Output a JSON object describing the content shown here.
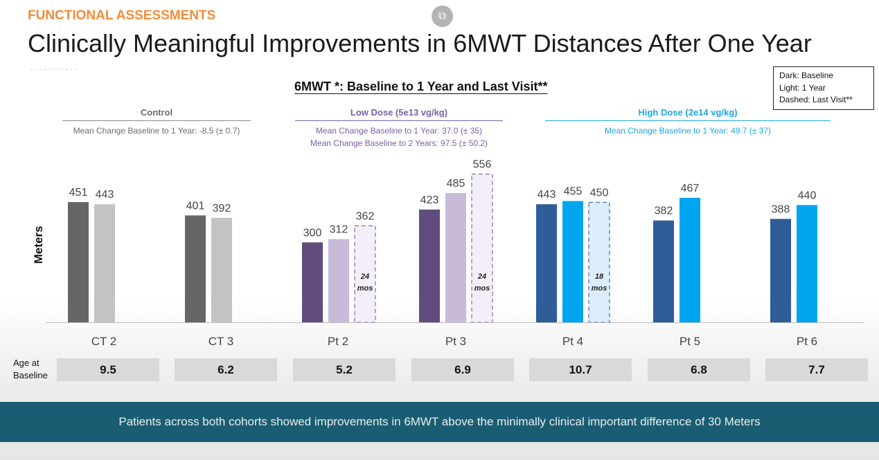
{
  "header": {
    "section": "FUNCTIONAL ASSESSMENTS",
    "title": "Clinically Meaningful Improvements in 6MWT Distances After One Year",
    "dots": "...........",
    "popout_icon": "open-in-new-icon"
  },
  "legend": {
    "line1": "Dark: Baseline",
    "line2": "Light: 1 Year",
    "line3": "Dashed: Last Visit**"
  },
  "groups": {
    "control": {
      "name": "Control",
      "stat1": "Mean Change Baseline to 1 Year: -8.5 (± 0.7)",
      "color": "#7a7a7a"
    },
    "low": {
      "name": "Low Dose (5e13 vg/kg)",
      "stat1": "Mean Change Baseline to 1 Year: 37.0 (± 35)",
      "stat2": "Mean Change Baseline to 2 Years: 97.5 (± 50.2)",
      "color": "#7b5ea7"
    },
    "high": {
      "name": "High Dose (2e14 vg/kg)",
      "stat1": "Mean Change Baseline to 1 Year: 49.7 (± 37)",
      "color": "#1ea6e3"
    }
  },
  "age": {
    "label_line1": "Age at",
    "label_line2": "Baseline",
    "values": [
      "9.5",
      "6.2",
      "5.2",
      "6.9",
      "10.7",
      "6.8",
      "7.7"
    ]
  },
  "banner": "Patients across both cohorts showed improvements in 6MWT above the minimally clinical important difference of 30 Meters",
  "chart_data": {
    "type": "bar",
    "title": "6MWT *: Baseline to 1 Year and Last Visit**",
    "ylabel": "Meters",
    "ylim": [
      0,
      560
    ],
    "categories": [
      "CT 2",
      "CT 3",
      "Pt 2",
      "Pt 3",
      "Pt 4",
      "Pt 5",
      "Pt 6"
    ],
    "series": [
      {
        "name": "Baseline",
        "values": [
          451,
          401,
          300,
          423,
          443,
          382,
          388
        ]
      },
      {
        "name": "1 Year",
        "values": [
          443,
          392,
          312,
          485,
          455,
          467,
          440
        ]
      },
      {
        "name": "Last Visit",
        "values": [
          null,
          null,
          362,
          556,
          450,
          null,
          null
        ],
        "annotations": [
          null,
          null,
          "24 mos",
          "24 mos",
          "18 mos",
          null,
          null
        ]
      }
    ],
    "colors": {
      "baseline": [
        "#666666",
        "#666666",
        "#604c7d",
        "#604c7d",
        "#2f5d97",
        "#2f5d97",
        "#2f5d97"
      ],
      "year1": [
        "#c3c3c3",
        "#c3c3c3",
        "#c7bbd9",
        "#c7bbd9",
        "#00a5ef",
        "#00a5ef",
        "#00a5ef"
      ],
      "last_fill": [
        "",
        "",
        "#f3eef7",
        "#f3eef7",
        "#dceefb",
        "",
        ""
      ],
      "last_stroke": [
        "",
        "",
        "#8d72ad",
        "#8d72ad",
        "#4a72b0",
        "",
        ""
      ]
    }
  }
}
